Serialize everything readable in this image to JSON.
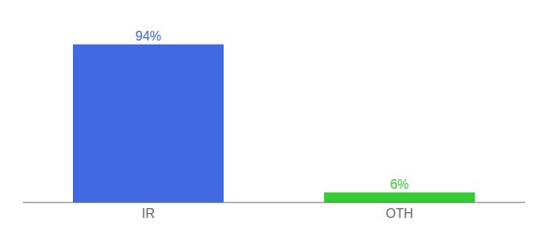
{
  "chart_data": {
    "type": "bar",
    "categories": [
      "IR",
      "OTH"
    ],
    "values": [
      94,
      6
    ],
    "value_labels": [
      "94%",
      "6%"
    ],
    "colors": [
      "#4169e1",
      "#33cc33"
    ],
    "ylim": [
      0,
      105
    ],
    "data_labels": true,
    "tick_labels": "x",
    "grid": false
  }
}
